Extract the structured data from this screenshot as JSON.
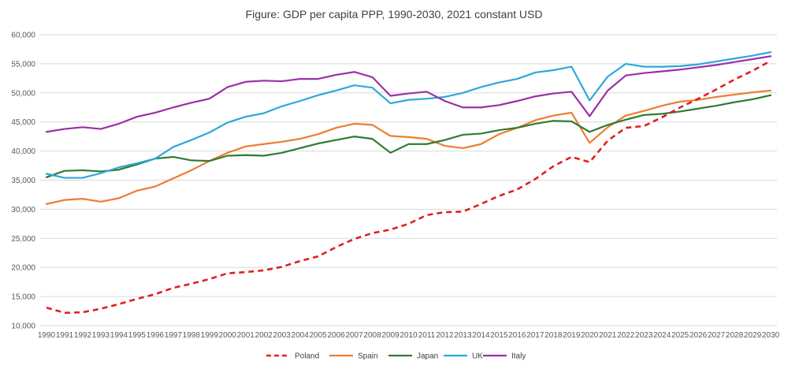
{
  "chart_data": {
    "type": "line",
    "title": "Figure: GDP per capita PPP, 1990-2030, 2021 constant USD",
    "xlabel": "",
    "ylabel": "",
    "ylim": [
      10000,
      60000
    ],
    "yticks": [
      10000,
      15000,
      20000,
      25000,
      30000,
      35000,
      40000,
      45000,
      50000,
      55000,
      60000
    ],
    "ytick_labels": [
      "10,000",
      "15,000",
      "20,000",
      "25,000",
      "30,000",
      "35,000",
      "40,000",
      "45,000",
      "50,000",
      "55,000",
      "60,000"
    ],
    "x": [
      "1990",
      "1991",
      "1992",
      "1993",
      "1994",
      "1995",
      "1996",
      "1997",
      "1998",
      "1999",
      "2000",
      "2001",
      "2002",
      "2003",
      "2004",
      "2005",
      "2006",
      "2007",
      "2008",
      "2009",
      "2010",
      "2011",
      "2012",
      "2013",
      "2014",
      "2015",
      "2016",
      "2017",
      "2018",
      "2019",
      "2020",
      "2021",
      "2022",
      "2023",
      "2024",
      "2025",
      "2026",
      "2027",
      "2028",
      "2029",
      "2030"
    ],
    "grid": true,
    "legend_position": "bottom",
    "series": [
      {
        "name": "Poland",
        "color": "#e02020",
        "dash": "dashed",
        "values": [
          13100,
          12200,
          12300,
          12900,
          13700,
          14600,
          15400,
          16500,
          17200,
          18000,
          19000,
          19200,
          19500,
          20100,
          21100,
          21900,
          23500,
          24900,
          25900,
          26500,
          27500,
          29000,
          29500,
          29600,
          30900,
          32300,
          33400,
          35200,
          37400,
          39000,
          38100,
          41800,
          44000,
          44300,
          45800,
          47500,
          49000,
          50600,
          52300,
          53800,
          55500
        ]
      },
      {
        "name": "Spain",
        "color": "#ed7d31",
        "dash": "solid",
        "values": [
          30900,
          31600,
          31800,
          31300,
          31900,
          33200,
          33900,
          35300,
          36700,
          38300,
          39700,
          40800,
          41200,
          41600,
          42100,
          42900,
          44000,
          44700,
          44500,
          42600,
          42400,
          42100,
          40900,
          40500,
          41200,
          42900,
          44000,
          45300,
          46100,
          46600,
          41400,
          44100,
          46100,
          46900,
          47800,
          48500,
          48800,
          49300,
          49700,
          50100,
          50400
        ]
      },
      {
        "name": "Japan",
        "color": "#2e7d32",
        "dash": "solid",
        "values": [
          35500,
          36600,
          36700,
          36500,
          36800,
          37700,
          38700,
          39000,
          38400,
          38300,
          39200,
          39300,
          39200,
          39700,
          40500,
          41300,
          41900,
          42500,
          42100,
          39700,
          41200,
          41200,
          41900,
          42800,
          43000,
          43600,
          44000,
          44700,
          45200,
          45100,
          43300,
          44500,
          45400,
          46200,
          46400,
          46800,
          47300,
          47800,
          48400,
          48900,
          49600
        ]
      },
      {
        "name": "UK",
        "color": "#2ea8d8",
        "dash": "solid",
        "values": [
          36100,
          35400,
          35400,
          36200,
          37200,
          37900,
          38700,
          40700,
          41900,
          43200,
          44900,
          45900,
          46500,
          47700,
          48600,
          49600,
          50400,
          51300,
          50900,
          48200,
          48800,
          49000,
          49300,
          50000,
          51000,
          51800,
          52400,
          53500,
          53900,
          54500,
          48700,
          52800,
          55000,
          54500,
          54500,
          54600,
          54900,
          55400,
          55900,
          56400,
          57000
        ]
      },
      {
        "name": "Italy",
        "color": "#9b30a8",
        "dash": "solid",
        "values": [
          43300,
          43800,
          44100,
          43800,
          44700,
          45900,
          46600,
          47500,
          48300,
          49000,
          51000,
          51900,
          52100,
          52000,
          52400,
          52400,
          53100,
          53600,
          52700,
          49500,
          49900,
          50200,
          48600,
          47500,
          47500,
          47900,
          48600,
          49400,
          49900,
          50200,
          46000,
          50400,
          53000,
          53400,
          53700,
          54000,
          54400,
          54800,
          55300,
          55800,
          56300
        ]
      }
    ]
  }
}
